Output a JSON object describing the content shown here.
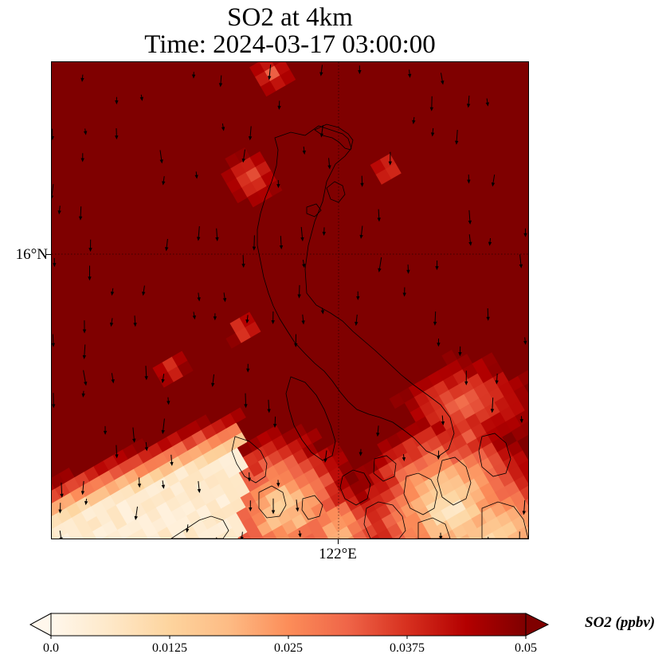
{
  "title": {
    "line1": "SO2 at 4km",
    "line2": "Time: 2024-03-17 03:00:00"
  },
  "map": {
    "lat_label": "16°N",
    "lon_label": "122°E",
    "gridline_color": "#000000",
    "coastline_color": "#000000"
  },
  "colorbar": {
    "label": "SO2 (ppbv)",
    "ticks": [
      "0.0",
      "0.0125",
      "0.025",
      "0.0375",
      "0.05"
    ],
    "tick_values": [
      0.0,
      0.0125,
      0.025,
      0.0375,
      0.05
    ],
    "min": 0.0,
    "max": 0.05,
    "colormap": "OrRd",
    "colors": [
      "#fff7ec",
      "#fee8c8",
      "#fdd49e",
      "#fdbb84",
      "#fc8d59",
      "#ef6548",
      "#d7301f",
      "#b30000",
      "#7f0000"
    ],
    "extend": "both"
  }
}
